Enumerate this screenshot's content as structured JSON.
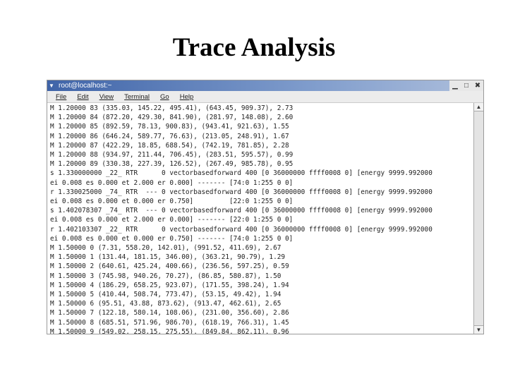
{
  "slide": {
    "title": "Trace Analysis"
  },
  "window": {
    "title": "root@localhost:~",
    "controls": [
      "minimize",
      "maximize",
      "close"
    ]
  },
  "menu": [
    "File",
    "Edit",
    "View",
    "Terminal",
    "Go",
    "Help"
  ],
  "terminal": {
    "lines": [
      "M 1.20000 83 (335.03, 145.22, 495.41), (643.45, 909.37), 2.73",
      "M 1.20000 84 (872.20, 429.30, 841.90), (281.97, 148.08), 2.60",
      "M 1.20000 85 (892.59, 78.13, 900.83), (943.41, 921.63), 1.55",
      "M 1.20000 86 (646.24, 589.77, 76.63), (213.05, 248.91), 1.67",
      "M 1.20000 87 (422.29, 18.85, 688.54), (742.19, 781.85), 2.28",
      "M 1.20000 88 (934.97, 211.44, 706.45), (283.51, 595.57), 0.99",
      "M 1.20000 89 (330.38, 227.39, 126.52), (267.49, 985.78), 0.95",
      "s 1.330000000 _22_ RTR      0 vectorbasedforward 400 [0 36000000 ffff0008 0] [energy 9999.992000",
      "ei 0.008 es 0.000 et 2.000 er 0.000] ------- [74:0 1:255 0 0]",
      "r 1.330025000 _74_ RTR  --- 0 vectorbasedforward 400 [0 36000000 ffff0008 0] [energy 9999.992000",
      "ei 0.008 es 0.000 et 0.000 er 0.750]         [22:0 1:255 0 0]",
      "s 1.402078307 _74_ RTR  --- 0 vectorbasedforward 400 [0 36000000 ffff0008 0] [energy 9999.992000",
      "ei 0.008 es 0.000 et 2.000 er 0.000] ------- [22:0 1:255 0 0]",
      "r 1.402103307 _22_ RTR      0 vectorbasedforward 400 [0 36000000 ffff0008 0] [energy 9999.992000",
      "ei 0.008 es 0.000 et 0.000 er 0.750] ------- [74:0 1:255 0 0]",
      "M 1.50000 0 (7.31, 558.20, 142.01), (991.52, 411.69), 2.67",
      "M 1.50000 1 (131.44, 181.15, 346.00), (363.21, 90.79), 1.29",
      "M 1.50000 2 (640.61, 425.24, 400.66), (236.56, 597.25), 0.59",
      "M 1.50000 3 (745.98, 940.26, 70.27), (86.85, 580.87), 1.50",
      "M 1.50000 4 (186.29, 658.25, 923.07), (171.55, 398.24), 1.94",
      "M 1.50000 5 (410.44, 508.74, 773.47), (53.15, 49.42), 1.94",
      "M 1.50000 6 (95.51, 43.88, 873.62), (913.47, 462.61), 2.65",
      "M 1.50000 7 (122.18, 580.14, 108.06), (231.00, 356.60), 2.86",
      "M 1.50000 8 (685.51, 571.96, 986.70), (618.19, 766.31), 1.45",
      "M 1.50000 9 (549.02, 258.15, 275.55), (849.84, 862.11), 0.96",
      ":"
    ]
  }
}
